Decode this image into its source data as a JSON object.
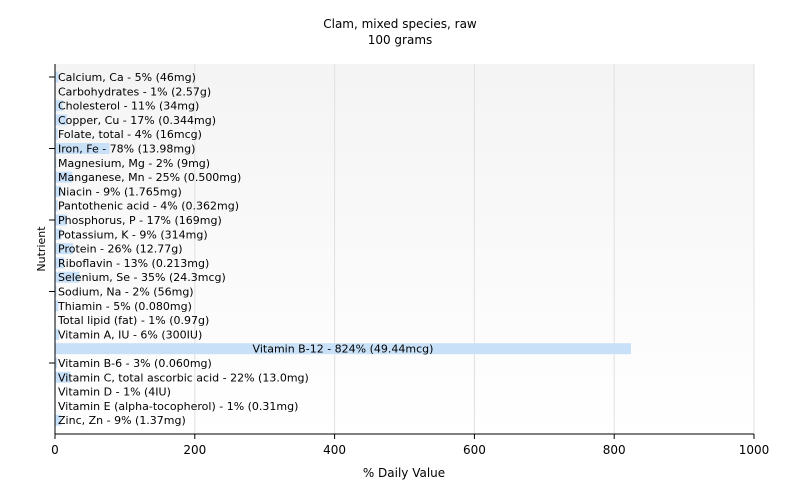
{
  "chart_data": {
    "type": "bar",
    "orientation": "horizontal",
    "title": "Clam, mixed species, raw",
    "subtitle": "100 grams",
    "xlabel": "% Daily Value",
    "ylabel": "Nutrient",
    "xlim": [
      0,
      1000
    ],
    "xticks": [
      0,
      200,
      400,
      600,
      800,
      1000
    ],
    "grid": true,
    "bar_color": "#c9e1f8",
    "plot_background_top": "#f4f4f4",
    "plot_background_bottom": "#ffffff",
    "grid_color": "#e0e0e0",
    "categories": [
      "Calcium, Ca",
      "Carbohydrates",
      "Cholesterol",
      "Copper, Cu",
      "Folate, total",
      "Iron, Fe",
      "Magnesium, Mg",
      "Manganese, Mn",
      "Niacin",
      "Pantothenic acid",
      "Phosphorus, P",
      "Potassium, K",
      "Protein",
      "Riboflavin",
      "Selenium, Se",
      "Sodium, Na",
      "Thiamin",
      "Total lipid (fat)",
      "Vitamin A, IU",
      "Vitamin B-12",
      "Vitamin B-6",
      "Vitamin C, total ascorbic acid",
      "Vitamin D",
      "Vitamin E (alpha-tocopherol)",
      "Zinc, Zn"
    ],
    "values": [
      5,
      1,
      11,
      17,
      4,
      78,
      2,
      25,
      9,
      4,
      17,
      9,
      26,
      13,
      35,
      2,
      5,
      1,
      6,
      824,
      3,
      22,
      1,
      1,
      9
    ],
    "labels": [
      "Calcium, Ca - 5% (46mg)",
      "Carbohydrates - 1% (2.57g)",
      "Cholesterol - 11% (34mg)",
      "Copper, Cu - 17% (0.344mg)",
      "Folate, total - 4% (16mcg)",
      "Iron, Fe - 78% (13.98mg)",
      "Magnesium, Mg - 2% (9mg)",
      "Manganese, Mn - 25% (0.500mg)",
      "Niacin - 9% (1.765mg)",
      "Pantothenic acid - 4% (0.362mg)",
      "Phosphorus, P - 17% (169mg)",
      "Potassium, K - 9% (314mg)",
      "Protein - 26% (12.77g)",
      "Riboflavin - 13% (0.213mg)",
      "Selenium, Se - 35% (24.3mcg)",
      "Sodium, Na - 2% (56mg)",
      "Thiamin - 5% (0.080mg)",
      "Total lipid (fat) - 1% (0.97g)",
      "Vitamin A, IU - 6% (300IU)",
      "Vitamin B-12 - 824% (49.44mcg)",
      "Vitamin B-6 - 3% (0.060mg)",
      "Vitamin C, total ascorbic acid - 22% (13.0mg)",
      "Vitamin D - 1% (4IU)",
      "Vitamin E (alpha-tocopherol) - 1% (0.31mg)",
      "Zinc, Zn - 9% (1.37mg)"
    ]
  }
}
